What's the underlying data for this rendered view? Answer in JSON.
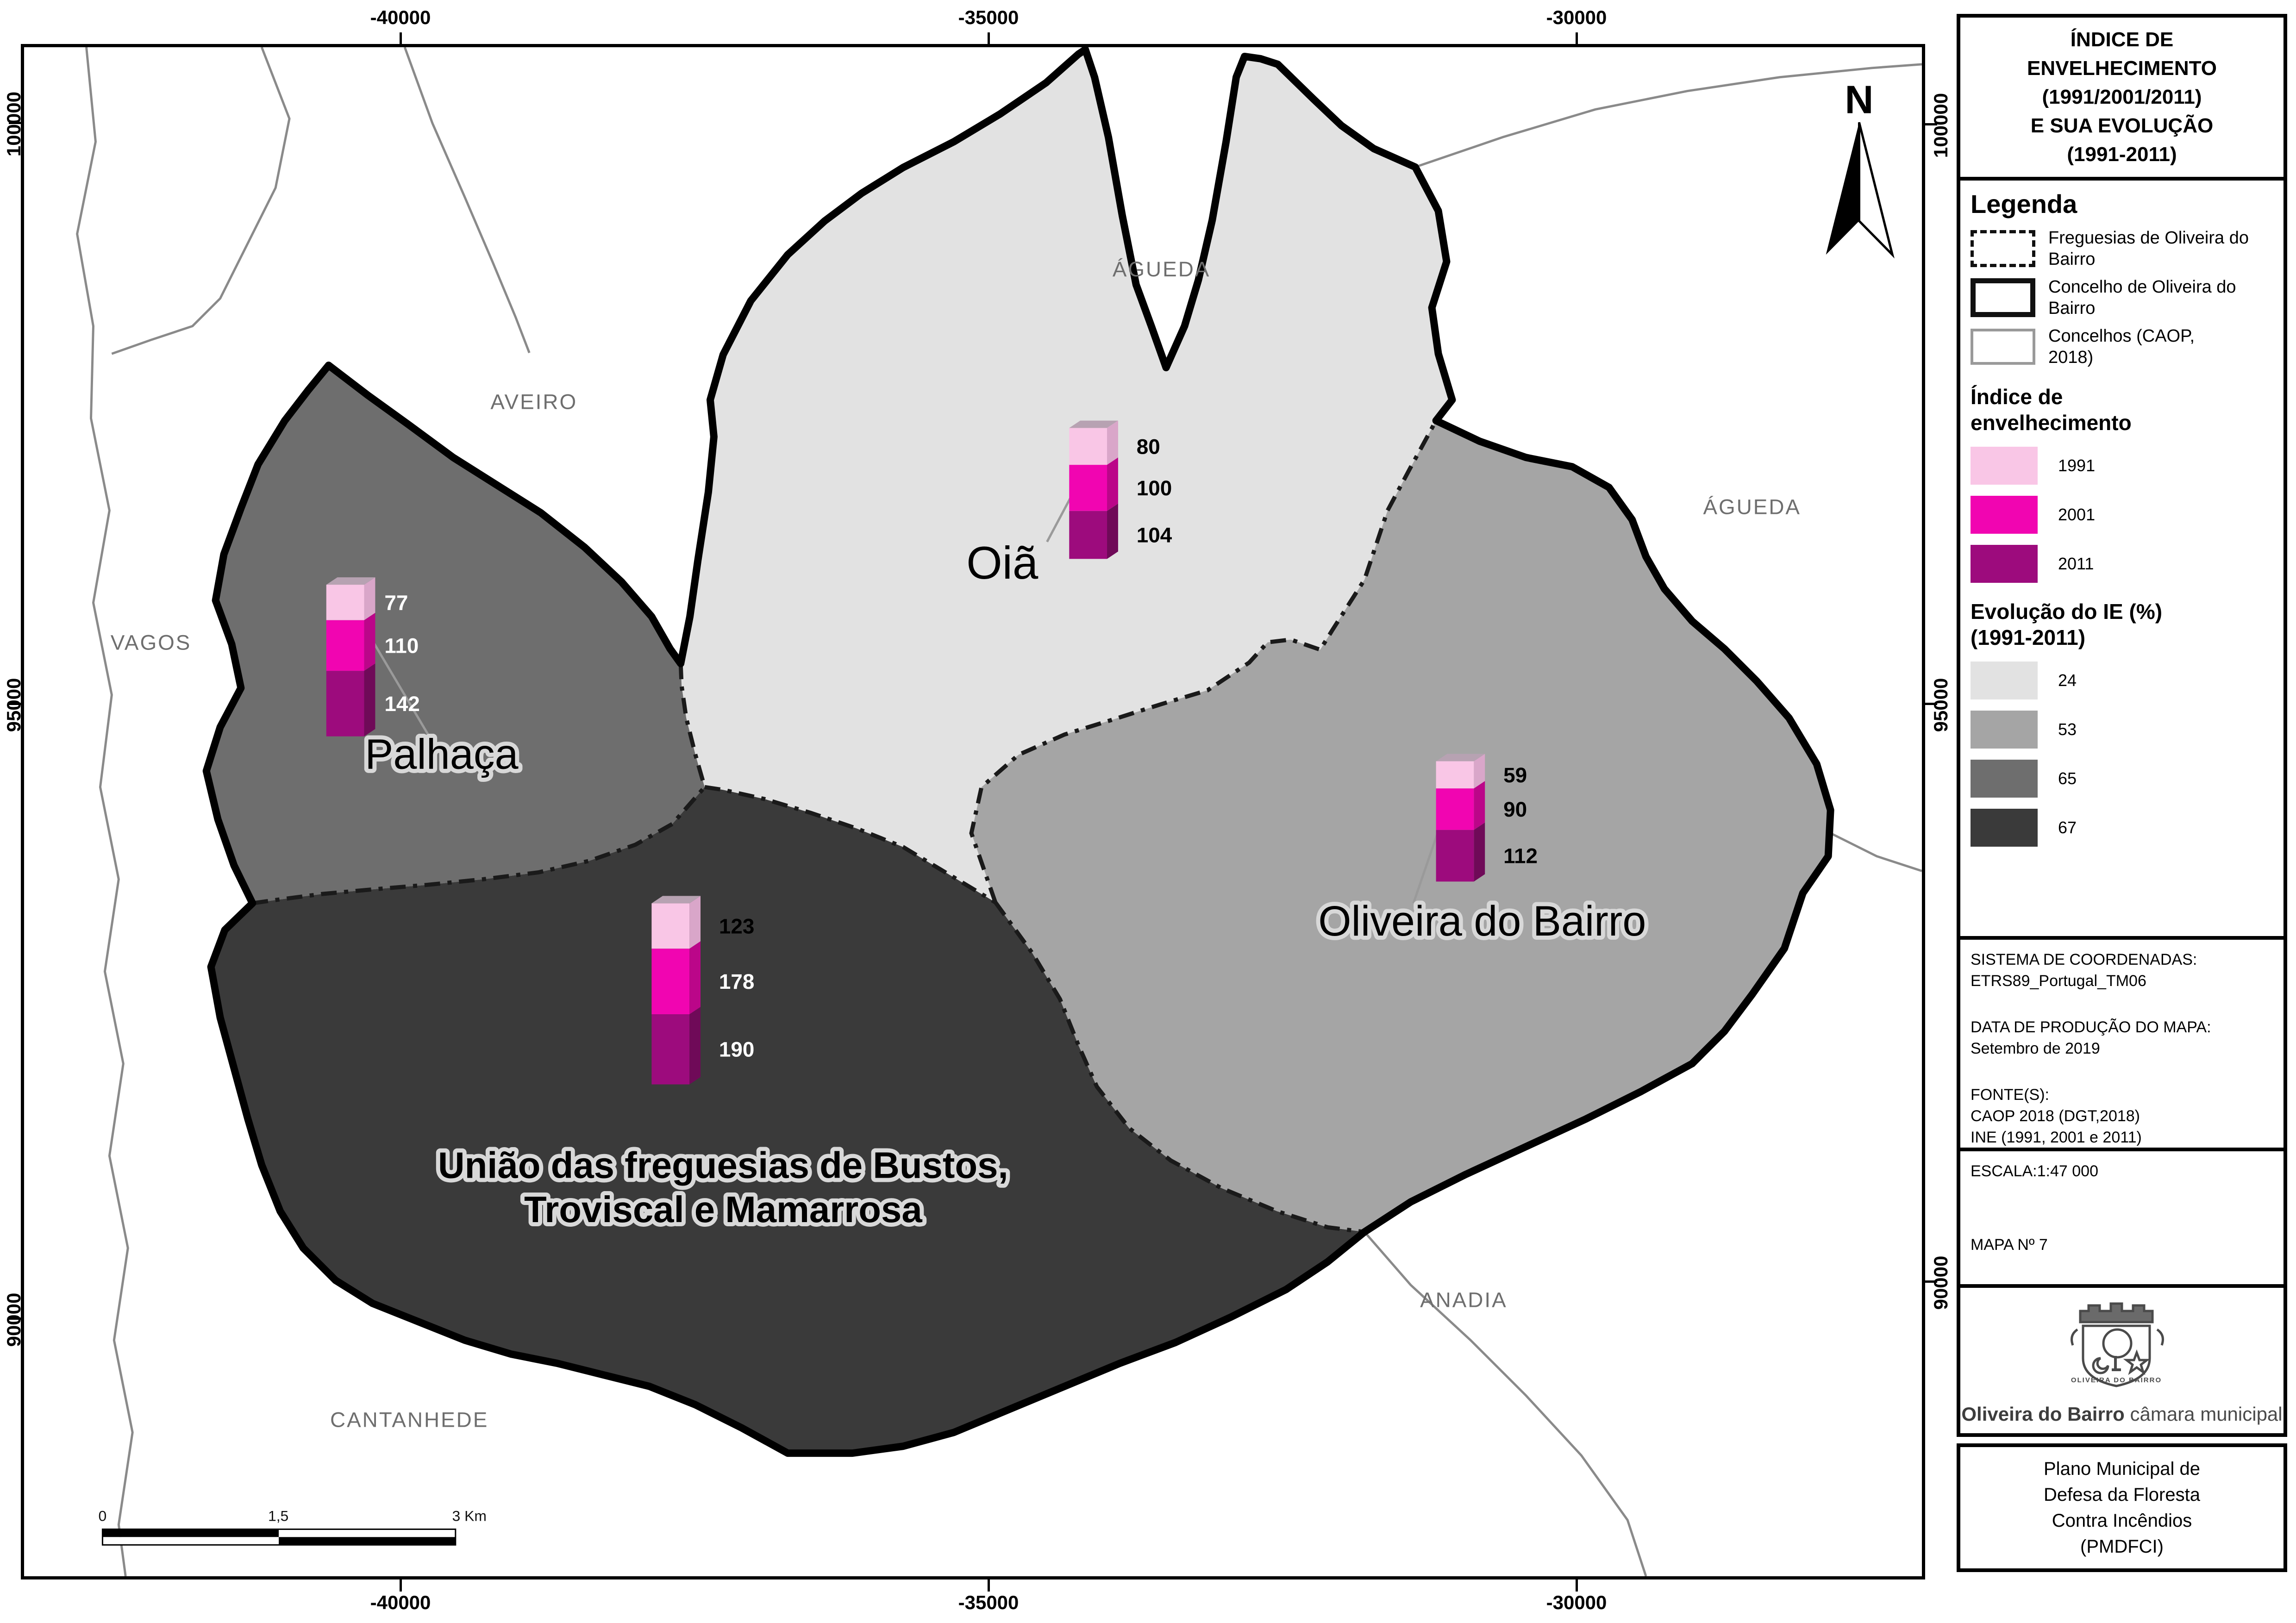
{
  "title_panel": {
    "lines": [
      "ÍNDICE DE",
      "ENVELHECIMENTO",
      "(1991/2001/2011)",
      "E SUA EVOLUÇÃO",
      "(1991-2011)"
    ]
  },
  "legend": {
    "heading": "Legenda",
    "boundary_items": [
      {
        "id": "freguesias",
        "label": "Freguesias de Oliveira do Bairro"
      },
      {
        "id": "concelho",
        "label": "Concelho de Oliveira do Bairro"
      },
      {
        "id": "concelhos_caop",
        "label": "Concelhos (CAOP, 2018)"
      }
    ],
    "ie_heading": "Índice de envelhecimento",
    "ie_years": [
      {
        "label": "1991",
        "color": "#f9c6e6"
      },
      {
        "label": "2001",
        "color": "#f105b1"
      },
      {
        "label": "2011",
        "color": "#9d0b7d"
      }
    ],
    "evolution_heading": "Evolução do IE (%) (1991-2011)",
    "evolution_classes": [
      {
        "value": "24",
        "color": "#e2e2e2"
      },
      {
        "value": "53",
        "color": "#a5a5a5"
      },
      {
        "value": "65",
        "color": "#6e6e6e"
      },
      {
        "value": "67",
        "color": "#3a3a3a"
      }
    ]
  },
  "info_panel": {
    "coord_label": "SISTEMA DE COORDENADAS:",
    "coord_value": "ETRS89_Portugal_TM06",
    "date_label": "DATA DE PRODUÇÃO DO MAPA:",
    "date_value": "Setembro de 2019",
    "source_label": "FONTE(S):",
    "source_lines": [
      "CAOP 2018 (DGT,2018)",
      "INE (1991, 2001 e 2011)"
    ]
  },
  "scale_panel": {
    "label": "ESCALA:",
    "value": "1:47 000",
    "map_number": "MAPA Nº 7"
  },
  "logo_panel": {
    "crest_caption": "OLIVEIRA DO BAIRRO",
    "name_bold": "Oliveira do Bairro",
    "name_regular": "câmara municipal"
  },
  "footer_panel": {
    "lines": [
      "Plano Municipal de",
      "Defesa da Floresta",
      "Contra Incêndios",
      "(PMDFCI)"
    ]
  },
  "map": {
    "neighbors": [
      "ÁGUEDA",
      "AVEIRO",
      "VAGOS",
      "ÁGUEDA",
      "ANADIA",
      "CANTANHEDE"
    ],
    "north_label": "N",
    "x_tick_labels": [
      "-40000",
      "-35000",
      "-30000"
    ],
    "y_tick_labels": [
      "100000",
      "95000",
      "90000"
    ],
    "scalebar_labels": [
      "0",
      "1,5",
      "3 Km"
    ]
  },
  "chart_data": {
    "type": "bar",
    "title": "Índice de envelhecimento (1991/2001/2011) e sua evolução (1991-2011) por freguesia",
    "categories": [
      "1991",
      "2001",
      "2011"
    ],
    "series": [
      {
        "name": "Palhaça",
        "label_lines": [
          "Palhaça"
        ],
        "values": [
          77,
          110,
          142
        ],
        "evolution_1991_2011": 65,
        "region_color": "#6e6e6e"
      },
      {
        "name": "Oiã",
        "label_lines": [
          "Oiã"
        ],
        "values": [
          80,
          100,
          104
        ],
        "evolution_1991_2011": 24,
        "region_color": "#e2e2e2"
      },
      {
        "name": "Oliveira do Bairro",
        "label_lines": [
          "Oliveira do Bairro"
        ],
        "values": [
          59,
          90,
          112
        ],
        "evolution_1991_2011": 53,
        "region_color": "#a5a5a5"
      },
      {
        "name": "União das freguesias de Bustos, Troviscal e Mamarrosa",
        "label_lines": [
          "União das freguesias de Bustos,",
          "Troviscal e Mamarrosa"
        ],
        "values": [
          123,
          178,
          190
        ],
        "evolution_1991_2011": 67,
        "region_color": "#3a3a3a"
      }
    ],
    "bar_colors": [
      "#f9c6e6",
      "#f105b1",
      "#9d0b7d"
    ],
    "ylabel": "Índice de envelhecimento",
    "legend_position": "right"
  }
}
